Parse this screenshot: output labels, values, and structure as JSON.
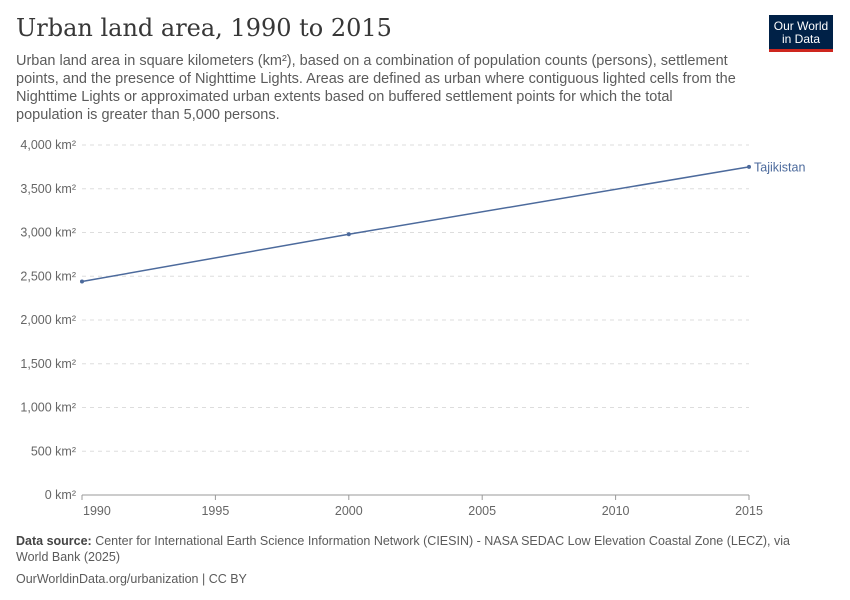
{
  "title": "Urban land area, 1990 to 2015",
  "subtitle": "Urban land area in square kilometers (km²), based on a combination of population counts (persons), settlement points, and the presence of Nighttime Lights. Areas are defined as urban where contiguous lighted cells from the Nighttime Lights or approximated urban extents based on buffered settlement points for which the total population is greater than 5,000 persons.",
  "logo": {
    "line1": "Our World",
    "line2": "in Data"
  },
  "footer": {
    "source_label": "Data source:",
    "source": " Center for International Earth Science Information Network (CIESIN) - NASA SEDAC Low Elevation Coastal Zone (LECZ), via World Bank (2025)",
    "license": "OurWorldinData.org/urbanization | CC BY"
  },
  "chart_data": {
    "type": "line",
    "title": "Urban land area, 1990 to 2015",
    "x": [
      1990,
      2000,
      2015
    ],
    "series": [
      {
        "name": "Tajikistan",
        "values": [
          2440,
          2980,
          3750
        ],
        "color": "#4c6a9c"
      }
    ],
    "ylim": [
      0,
      4000
    ],
    "xlim": [
      1990,
      2015
    ],
    "yticks": [
      0,
      500,
      1000,
      1500,
      2000,
      2500,
      3000,
      3500,
      4000
    ],
    "ytick_labels": [
      "0 km²",
      "500 km²",
      "1,000 km²",
      "1,500 km²",
      "2,000 km²",
      "2,500 km²",
      "3,000 km²",
      "3,500 km²",
      "4,000 km²"
    ],
    "xticks": [
      1990,
      1995,
      2000,
      2005,
      2010,
      2015
    ],
    "xtick_labels": [
      "1990",
      "1995",
      "2000",
      "2005",
      "2010",
      "2015"
    ],
    "grid": "horizontal dashed",
    "legend": "inline-right"
  }
}
